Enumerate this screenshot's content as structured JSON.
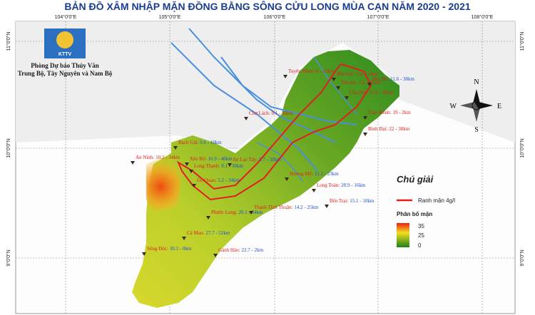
{
  "title": "BẢN ĐỒ XÂM NHẬP MẶN ĐỒNG BẰNG SÔNG CỬU LONG MÙA CẠN NĂM 2020 - 2021",
  "organization": {
    "logo_text": "KTTV",
    "lines": [
      "Phòng Dự báo Thủy Văn",
      "Trung Bộ, Tây Nguyên và Nam Bộ"
    ]
  },
  "graticule": {
    "longitudes": [
      "104°0'0\"E",
      "105°0'0\"E",
      "106°0'0\"E",
      "107°0'0\"E",
      "108°0'0\"E"
    ],
    "latitudes": [
      "11°0'0\"N",
      "10°0'0\"N",
      "9°0'0\"N"
    ]
  },
  "compass": {
    "n": "N",
    "s": "S",
    "w": "W",
    "e": "E"
  },
  "legend": {
    "title": "Chú giải",
    "boundary": "Ranh mặn 4g/l",
    "distribution_title": "Phân bố mặn",
    "scale": [
      "35",
      "25",
      "0"
    ]
  },
  "stations": [
    {
      "name": "Tuyên Nhơn:",
      "range": "0 - 12km",
      "color": "#e02020"
    },
    {
      "name": "Bến Lức:",
      "range": "2.4 - 52km",
      "color": "#e02020"
    },
    {
      "name": "Tân An:",
      "range": "1.2 - 30km",
      "color": "#e02020"
    },
    {
      "name": "Nhà Bè:",
      "range": "11.6 - 38km",
      "color": "#1f4fd0"
    },
    {
      "name": "Cầu Nổi:",
      "range": "11.9 - 36km",
      "color": "#e02020"
    },
    {
      "name": "Vàm Kênh:",
      "range": "19 - 2km",
      "color": "#e02020"
    },
    {
      "name": "Bình Đại:",
      "range": "22 - 38km",
      "color": "#e02020"
    },
    {
      "name": "Chợ Lách:",
      "range": "0.1 - 30km",
      "color": "#e02020"
    },
    {
      "name": "Rạch Giá:",
      "range": "0.6 - 10km",
      "color": "#1f4fd0"
    },
    {
      "name": "An Ninh:",
      "range": "10.2 - 34km",
      "color": "#e02020"
    },
    {
      "name": "Xẻo Rô:",
      "range": "16.9 - 40km",
      "color": "#1f4fd0"
    },
    {
      "name": "Long Thạnh:",
      "range": "0.1 - 30km",
      "color": "#1f4fd0"
    },
    {
      "name": "Gò Quao:",
      "range": "5.2 - 34km",
      "color": "#1f4fd0"
    },
    {
      "name": "An Lạc Tây:",
      "range": "5.7 - 50km",
      "color": "#1f4fd0"
    },
    {
      "name": "Hương Mỹ:",
      "range": "11.2 - 23km",
      "color": "#1f4fd0"
    },
    {
      "name": "Long Toàn:",
      "range": "20.9 - 16km",
      "color": "#1f4fd0"
    },
    {
      "name": "Bến Trại:",
      "range": "15.1 - 10km",
      "color": "#1f4fd0"
    },
    {
      "name": "Phước Long:",
      "range": "20.1 - 34km",
      "color": "#1f4fd0"
    },
    {
      "name": "Thạnh Thới Thuận:",
      "range": "14.2 - 25km",
      "color": "#1f4fd0"
    },
    {
      "name": "Cà Mau:",
      "range": "27.7 - 52km",
      "color": "#1f4fd0"
    },
    {
      "name": "Sông Đốc:",
      "range": "30.3 - 0km",
      "color": "#1f4fd0"
    },
    {
      "name": "Gành Hào:",
      "range": "22.7 - 2km",
      "color": "#1f4fd0"
    }
  ]
}
